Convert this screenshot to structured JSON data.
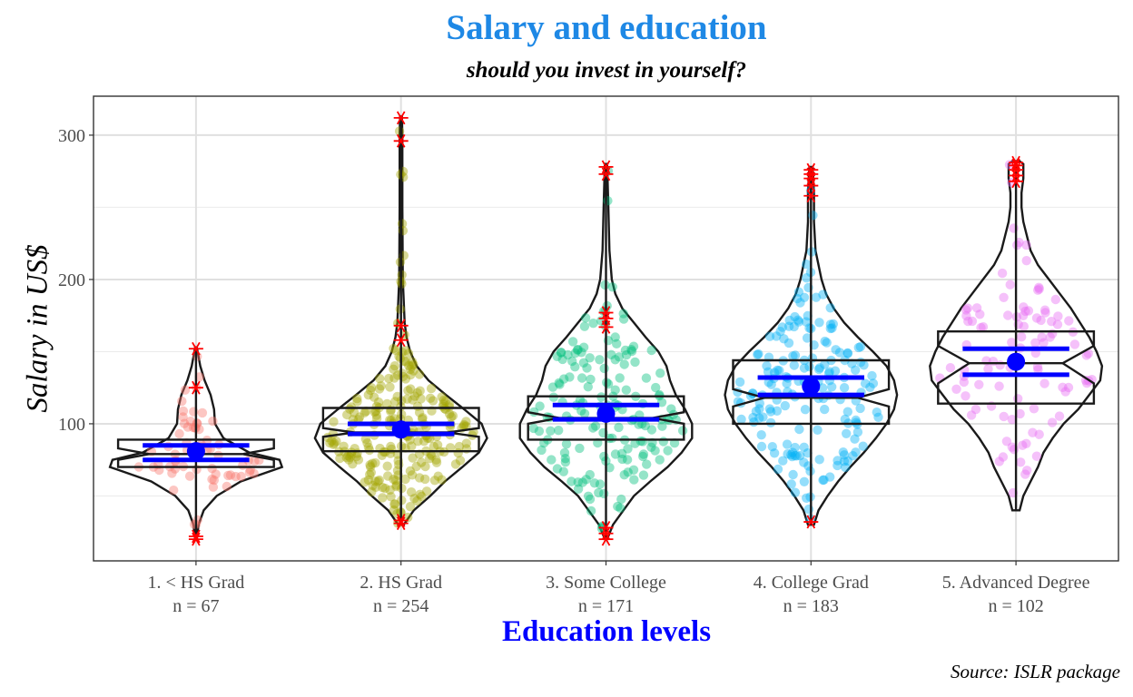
{
  "chart_data": {
    "type": "violin",
    "title": "Salary and education",
    "subtitle": "should you invest in yourself?",
    "xlabel": "Education levels",
    "ylabel": "Salary in US$",
    "caption": "Source: ISLR package",
    "ylim": [
      5,
      327
    ],
    "yticks": [
      100,
      200,
      300
    ],
    "grid": true,
    "colors": {
      "title": "#1e88e5",
      "xlabel": "#0000ff",
      "mean": "#0000ff",
      "outlier": "#ff0000",
      "outline": "#1a1a1a",
      "points": [
        "#f8766d",
        "#a3a500",
        "#00bf7d",
        "#00b0f6",
        "#e76bf3"
      ]
    },
    "categories": [
      {
        "label": "1. < HS Grad",
        "n_label": "n =  67",
        "n": 67,
        "mean": 81,
        "ci": [
          75,
          85
        ],
        "box": {
          "lower": 70,
          "q1": 70,
          "median": 79,
          "q3": 89,
          "upper": 89
        },
        "notch": [
          75,
          83
        ],
        "range": [
          20,
          153
        ],
        "outliers": [
          20,
          22,
          125,
          152
        ],
        "violin": [
          [
            20,
            1
          ],
          [
            30,
            3
          ],
          [
            40,
            9
          ],
          [
            50,
            24
          ],
          [
            60,
            52
          ],
          [
            70,
            100
          ],
          [
            75,
            97
          ],
          [
            80,
            62
          ],
          [
            90,
            32
          ],
          [
            100,
            22
          ],
          [
            110,
            21
          ],
          [
            120,
            17
          ],
          [
            130,
            10
          ],
          [
            140,
            5
          ],
          [
            153,
            1
          ]
        ]
      },
      {
        "label": "2. HS Grad",
        "n_label": "n =  254",
        "n": 254,
        "mean": 96,
        "ci": [
          93,
          100
        ],
        "box": {
          "lower": 81,
          "q1": 81,
          "median": 94,
          "q3": 111,
          "upper": 111
        },
        "notch": [
          91,
          97
        ],
        "range": [
          30,
          313
        ],
        "outliers": [
          31,
          33,
          158,
          168,
          296,
          312
        ],
        "violin": [
          [
            30,
            3
          ],
          [
            40,
            14
          ],
          [
            50,
            32
          ],
          [
            60,
            48
          ],
          [
            70,
            67
          ],
          [
            80,
            85
          ],
          [
            90,
            94
          ],
          [
            100,
            88
          ],
          [
            110,
            69
          ],
          [
            120,
            49
          ],
          [
            130,
            30
          ],
          [
            140,
            17
          ],
          [
            150,
            10
          ],
          [
            160,
            6
          ],
          [
            170,
            4
          ],
          [
            200,
            2
          ],
          [
            250,
            1.5
          ],
          [
            300,
            1.5
          ],
          [
            313,
            1
          ]
        ]
      },
      {
        "label": "3. Some College",
        "n_label": "n =  171",
        "n": 171,
        "mean": 107,
        "ci": [
          103,
          113
        ],
        "box": {
          "lower": 89,
          "q1": 89,
          "median": 104,
          "q3": 119,
          "upper": 119
        },
        "notch": [
          100,
          108
        ],
        "range": [
          20,
          280
        ],
        "outliers": [
          20,
          24,
          28,
          167,
          173,
          177,
          273,
          278
        ],
        "violin": [
          [
            20,
            1
          ],
          [
            30,
            6
          ],
          [
            40,
            15
          ],
          [
            50,
            24
          ],
          [
            60,
            38
          ],
          [
            70,
            53
          ],
          [
            80,
            65
          ],
          [
            90,
            74
          ],
          [
            100,
            74
          ],
          [
            110,
            68
          ],
          [
            120,
            60
          ],
          [
            130,
            55
          ],
          [
            140,
            52
          ],
          [
            150,
            45
          ],
          [
            160,
            34
          ],
          [
            170,
            24
          ],
          [
            180,
            14
          ],
          [
            190,
            8
          ],
          [
            200,
            5
          ],
          [
            220,
            3
          ],
          [
            250,
            2
          ],
          [
            280,
            1
          ]
        ]
      },
      {
        "label": "4. College Grad",
        "n_label": "n =  183",
        "n": 183,
        "mean": 126,
        "ci": [
          120,
          132
        ],
        "box": {
          "lower": 100,
          "q1": 100,
          "median": 118,
          "q3": 144,
          "upper": 144
        },
        "notch": [
          112,
          124
        ],
        "range": [
          30,
          278
        ],
        "outliers": [
          32,
          258,
          265,
          270,
          273,
          276
        ],
        "violin": [
          [
            30,
            2
          ],
          [
            40,
            5
          ],
          [
            50,
            11
          ],
          [
            60,
            18
          ],
          [
            70,
            26
          ],
          [
            80,
            35
          ],
          [
            90,
            43
          ],
          [
            100,
            50
          ],
          [
            110,
            55
          ],
          [
            120,
            57
          ],
          [
            130,
            55
          ],
          [
            140,
            50
          ],
          [
            150,
            41
          ],
          [
            160,
            31
          ],
          [
            170,
            22
          ],
          [
            180,
            15
          ],
          [
            190,
            10
          ],
          [
            200,
            7
          ],
          [
            210,
            5
          ],
          [
            220,
            3
          ],
          [
            240,
            2
          ],
          [
            260,
            2
          ],
          [
            270,
            1.5
          ],
          [
            278,
            1
          ]
        ]
      },
      {
        "label": "5. Advanced Degree",
        "n_label": "n =  102",
        "n": 102,
        "mean": 143,
        "ci": [
          134,
          152
        ],
        "box": {
          "lower": 114,
          "q1": 114,
          "median": 142,
          "q3": 164,
          "upper": 164
        },
        "notch": [
          128,
          154
        ],
        "range": [
          40,
          282
        ],
        "outliers": [
          268,
          272,
          276,
          279,
          281
        ],
        "violin": [
          [
            40,
            2
          ],
          [
            50,
            4
          ],
          [
            60,
            8
          ],
          [
            70,
            12
          ],
          [
            80,
            15
          ],
          [
            90,
            20
          ],
          [
            100,
            26
          ],
          [
            110,
            34
          ],
          [
            120,
            40
          ],
          [
            130,
            46
          ],
          [
            140,
            47
          ],
          [
            150,
            44
          ],
          [
            160,
            40
          ],
          [
            170,
            35
          ],
          [
            180,
            30
          ],
          [
            190,
            24
          ],
          [
            200,
            18
          ],
          [
            210,
            12
          ],
          [
            220,
            8
          ],
          [
            230,
            6
          ],
          [
            240,
            4
          ],
          [
            250,
            3
          ],
          [
            260,
            3
          ],
          [
            270,
            4
          ],
          [
            280,
            4
          ],
          [
            282,
            2
          ]
        ]
      }
    ]
  }
}
